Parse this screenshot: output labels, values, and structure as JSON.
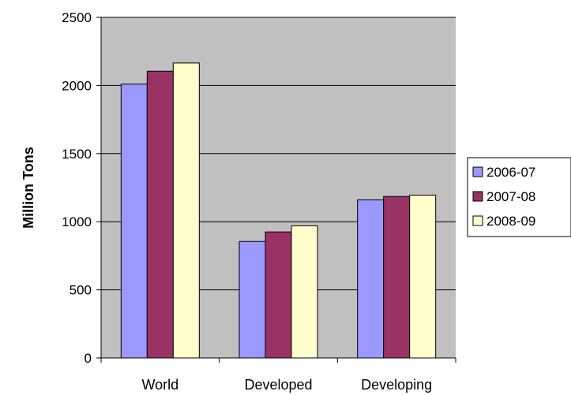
{
  "chart_data": {
    "type": "bar",
    "categories": [
      "World",
      "Developed",
      "Developing"
    ],
    "series": [
      {
        "name": "2006-07",
        "values": [
          2010,
          855,
          1160
        ],
        "color": "#9999ff"
      },
      {
        "name": "2007-08",
        "values": [
          2105,
          925,
          1185
        ],
        "color": "#993366"
      },
      {
        "name": "2008-09",
        "values": [
          2165,
          970,
          1195
        ],
        "color": "#ffffcc"
      }
    ],
    "title": "",
    "xlabel": "",
    "ylabel": "Million Tons",
    "ylim": [
      0,
      2500
    ],
    "yticks": [
      "0",
      "500",
      "1000",
      "1500",
      "2000",
      "2500"
    ],
    "grid": true,
    "plot_background": "#c0c0c0",
    "legend_position": "right"
  }
}
